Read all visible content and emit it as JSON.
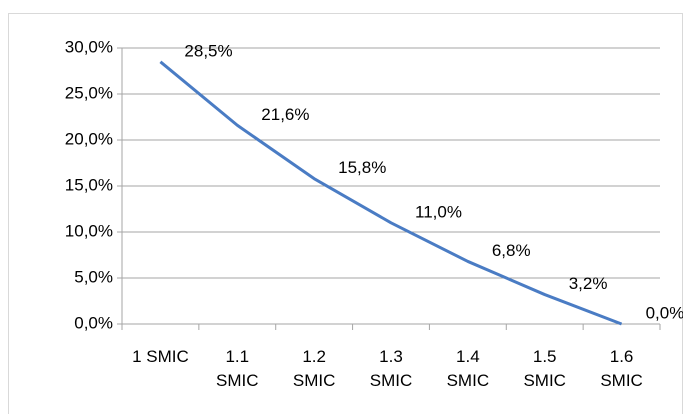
{
  "chart_data": {
    "type": "line",
    "categories": [
      "1 SMIC",
      "1.1 SMIC",
      "1.2 SMIC",
      "1.3 SMIC",
      "1.4 SMIC",
      "1.5 SMIC",
      "1.6 SMIC"
    ],
    "values": [
      28.5,
      21.6,
      15.8,
      11.0,
      6.8,
      3.2,
      0.0
    ],
    "value_labels": [
      "28,5%",
      "21,6%",
      "15,8%",
      "11,0%",
      "6,8%",
      "3,2%",
      "0,0%"
    ],
    "color": "#4a7cc4",
    "ylim": [
      0,
      30
    ],
    "yticks": [
      {
        "value": 0,
        "label": "0,0%"
      },
      {
        "value": 5,
        "label": "5,0%"
      },
      {
        "value": 10,
        "label": "10,0%"
      },
      {
        "value": 15,
        "label": "15,0%"
      },
      {
        "value": 20,
        "label": "20,0%"
      },
      {
        "value": 25,
        "label": "25,0%"
      },
      {
        "value": 30,
        "label": "30,0%"
      }
    ],
    "grid": true
  }
}
